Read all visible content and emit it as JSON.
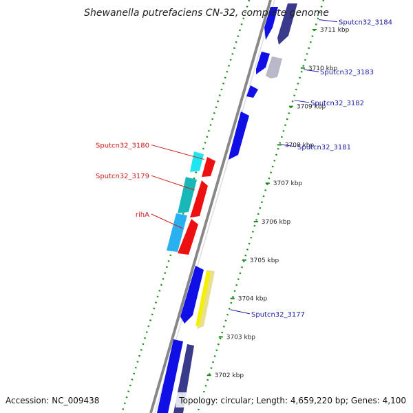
{
  "title": "Shewanella putrefaciens CN-32, complete genome",
  "accession": "Accession: NC_009438",
  "summary": "Topology: circular; Length: 4,659,220 bp; Genes: 4,100",
  "colors": {
    "blue": "#1010e6",
    "navy": "#3a3a8c",
    "gray": "#b8b8c8",
    "cyan": "#1ee6f0",
    "teal": "#18b8b8",
    "skyblue": "#28b0f0",
    "red": "#ee1010",
    "yellow": "#f4f000",
    "khaki": "#e8e090",
    "backbone": "#888888",
    "dots": "#1a8a1a"
  },
  "ticks": [
    {
      "label": "3711 kbp",
      "kbp": 3711
    },
    {
      "label": "3710 kbp",
      "kbp": 3710
    },
    {
      "label": "3709 kbp",
      "kbp": 3709
    },
    {
      "label": "3708 kbp",
      "kbp": 3708
    },
    {
      "label": "3707 kbp",
      "kbp": 3707
    },
    {
      "label": "3706 kbp",
      "kbp": 3706
    },
    {
      "label": "3705 kbp",
      "kbp": 3705
    },
    {
      "label": "3704 kbp",
      "kbp": 3704
    },
    {
      "label": "3703 kbp",
      "kbp": 3703
    },
    {
      "label": "3702 kbp",
      "kbp": 3702
    }
  ],
  "right_labels": [
    {
      "text": "Sputcn32_3184",
      "kbp": 3711.15
    },
    {
      "text": "Sputcn32_3183",
      "kbp": 3709.85
    },
    {
      "text": "Sputcn32_3182",
      "kbp": 3709.05
    },
    {
      "text": "Sputcn32_3181",
      "kbp": 3707.9
    },
    {
      "text": "Sputcn32_3177",
      "kbp": 3703.6
    }
  ],
  "left_labels": [
    {
      "text": "Sputcn32_3180",
      "kbp": 3707.8
    },
    {
      "text": "Sputcn32_3179",
      "kbp": 3707.0
    },
    {
      "text": "rihA",
      "kbp": 3706.0
    }
  ]
}
